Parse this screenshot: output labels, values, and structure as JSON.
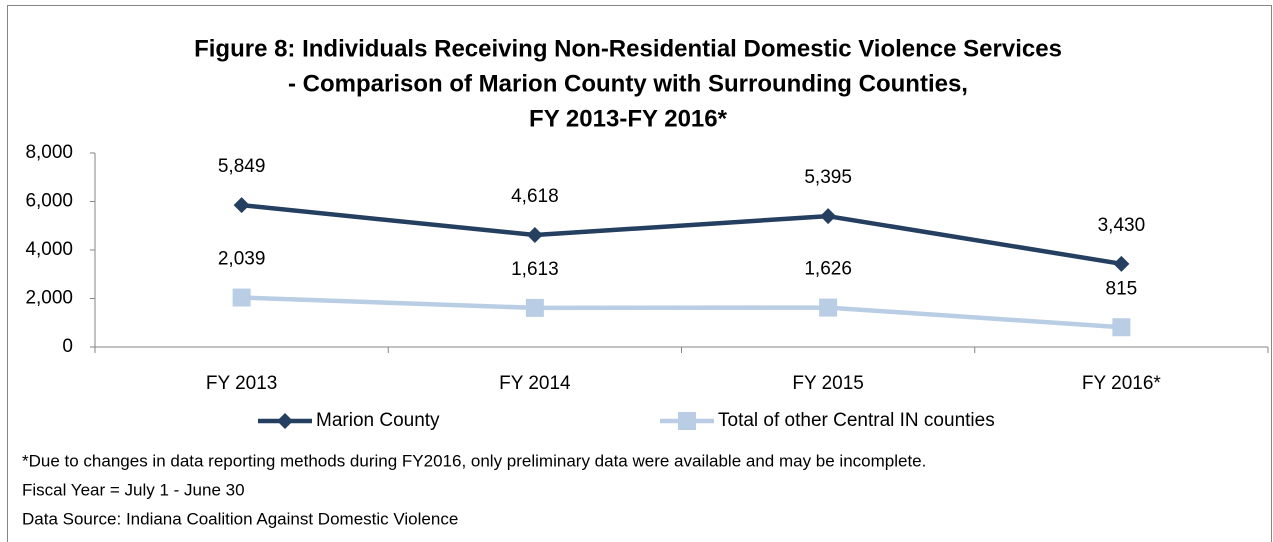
{
  "chart_data": {
    "type": "line",
    "title": [
      "Figure 8: Individuals Receiving Non-Residential Domestic Violence Services",
      "- Comparison of Marion County with Surrounding Counties,",
      "FY 2013-FY 2016*"
    ],
    "categories": [
      "FY 2013",
      "FY 2014",
      "FY 2015",
      "FY 2016*"
    ],
    "series": [
      {
        "name": "Marion County",
        "color": "#243f60",
        "marker": "diamond",
        "values": [
          5849,
          4618,
          5395,
          3430
        ],
        "value_labels": [
          "5,849",
          "4,618",
          "5,395",
          "3,430"
        ]
      },
      {
        "name": "Total of other Central IN counties",
        "color": "#b9cde5",
        "marker": "square",
        "values": [
          2039,
          1613,
          1626,
          815
        ],
        "value_labels": [
          "2,039",
          "1,613",
          "1,626",
          "815"
        ]
      }
    ],
    "ylim": [
      0,
      8000
    ],
    "yticks": [
      0,
      {
        "value": 2000,
        "label": "2,000"
      },
      {
        "value": 4000,
        "label": "4,000"
      },
      {
        "value": 6000,
        "label": "6,000"
      },
      {
        "value": 8000,
        "label": "8,000"
      }
    ],
    "grid": false,
    "legend": "bottom",
    "notes": [
      "*Due to changes in data reporting methods during FY2016, only preliminary data were available and may be incomplete.",
      "Fiscal Year = July 1 - June 30",
      "Data Source: Indiana Coalition Against Domestic Violence"
    ]
  }
}
